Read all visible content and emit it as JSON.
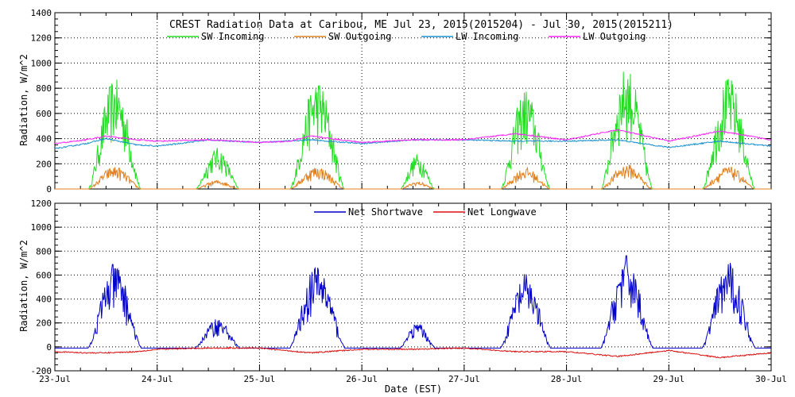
{
  "chart_data": [
    {
      "type": "line",
      "title": "CREST Radiation Data at Caribou, ME   Jul 23, 2015(2015204) - Jul 30, 2015(2015211)",
      "xlabel": "",
      "ylabel": "Radiation, W/m^2",
      "ylim": [
        0,
        1400
      ],
      "yticks": [
        0,
        200,
        400,
        600,
        800,
        1000,
        1200,
        1400
      ],
      "xlim": [
        0,
        7
      ],
      "grid": true,
      "legend": "top",
      "series": [
        {
          "name": "SW Incoming",
          "color": "#22dd22",
          "kind": "sw",
          "peaks": [
            880,
            330,
            880,
            280,
            800,
            980,
            890
          ],
          "nonzero_days": [
            [
              0.33,
              0.84
            ],
            [
              0.38,
              0.8
            ],
            [
              0.3,
              0.83
            ],
            [
              0.38,
              0.71
            ],
            [
              0.36,
              0.84
            ],
            [
              0.34,
              0.84
            ],
            [
              0.33,
              0.84
            ]
          ]
        },
        {
          "name": "SW Outgoing",
          "color": "#e08020",
          "kind": "sw",
          "peaks": [
            180,
            70,
            180,
            60,
            170,
            200,
            180
          ],
          "nonzero_days": [
            [
              0.33,
              0.84
            ],
            [
              0.38,
              0.8
            ],
            [
              0.3,
              0.83
            ],
            [
              0.38,
              0.71
            ],
            [
              0.36,
              0.84
            ],
            [
              0.34,
              0.84
            ],
            [
              0.33,
              0.84
            ]
          ]
        },
        {
          "name": "LW Incoming",
          "color": "#1a90d0",
          "kind": "lw",
          "x": [
            0,
            0.3,
            0.5,
            0.8,
            1.0,
            1.5,
            2.0,
            2.5,
            3.0,
            3.5,
            4.0,
            4.5,
            5.0,
            5.5,
            6.0,
            6.5,
            7.0
          ],
          "values": [
            320,
            360,
            400,
            350,
            340,
            390,
            370,
            390,
            360,
            390,
            390,
            380,
            380,
            390,
            330,
            380,
            340
          ]
        },
        {
          "name": "LW Outgoing",
          "color": "#ff22ff",
          "kind": "lw",
          "x": [
            0,
            0.3,
            0.5,
            0.8,
            1.0,
            1.5,
            2.0,
            2.3,
            2.5,
            3.0,
            3.5,
            4.0,
            4.5,
            4.8,
            5.0,
            5.5,
            6.0,
            6.5,
            7.0
          ],
          "values": [
            360,
            390,
            420,
            390,
            380,
            390,
            370,
            380,
            420,
            370,
            390,
            390,
            440,
            410,
            390,
            470,
            380,
            460,
            390
          ]
        }
      ]
    },
    {
      "type": "line",
      "title": "",
      "xlabel": "Date (EST)",
      "ylabel": "Radiation, W/m^2",
      "ylim": [
        -200,
        1200
      ],
      "yticks": [
        -200,
        0,
        200,
        400,
        600,
        800,
        1000,
        1200
      ],
      "xlim": [
        0,
        7
      ],
      "grid": true,
      "legend": "top",
      "categories": [
        "23-Jul",
        "24-Jul",
        "25-Jul",
        "26-Jul",
        "27-Jul",
        "28-Jul",
        "29-Jul",
        "30-Jul"
      ],
      "series": [
        {
          "name": "Net Shortwave",
          "color": "#0000c8",
          "kind": "netsw",
          "peaks": [
            700,
            240,
            690,
            200,
            610,
            770,
            710
          ],
          "nonzero_days": [
            [
              0.33,
              0.84
            ],
            [
              0.38,
              0.8
            ],
            [
              0.3,
              0.83
            ],
            [
              0.38,
              0.71
            ],
            [
              0.36,
              0.84
            ],
            [
              0.34,
              0.84
            ],
            [
              0.33,
              0.84
            ]
          ],
          "night_value": -10
        },
        {
          "name": "Net Longwave",
          "color": "#dd1010",
          "kind": "lw",
          "x": [
            0,
            0.3,
            0.5,
            0.8,
            1.0,
            1.5,
            2.0,
            2.5,
            3.0,
            3.5,
            4.0,
            4.5,
            5.0,
            5.5,
            6.0,
            6.5,
            7.0
          ],
          "values": [
            -40,
            -50,
            -50,
            -40,
            -20,
            -10,
            -10,
            -50,
            -20,
            -20,
            -10,
            -40,
            -40,
            -80,
            -30,
            -90,
            -50
          ]
        }
      ]
    }
  ]
}
